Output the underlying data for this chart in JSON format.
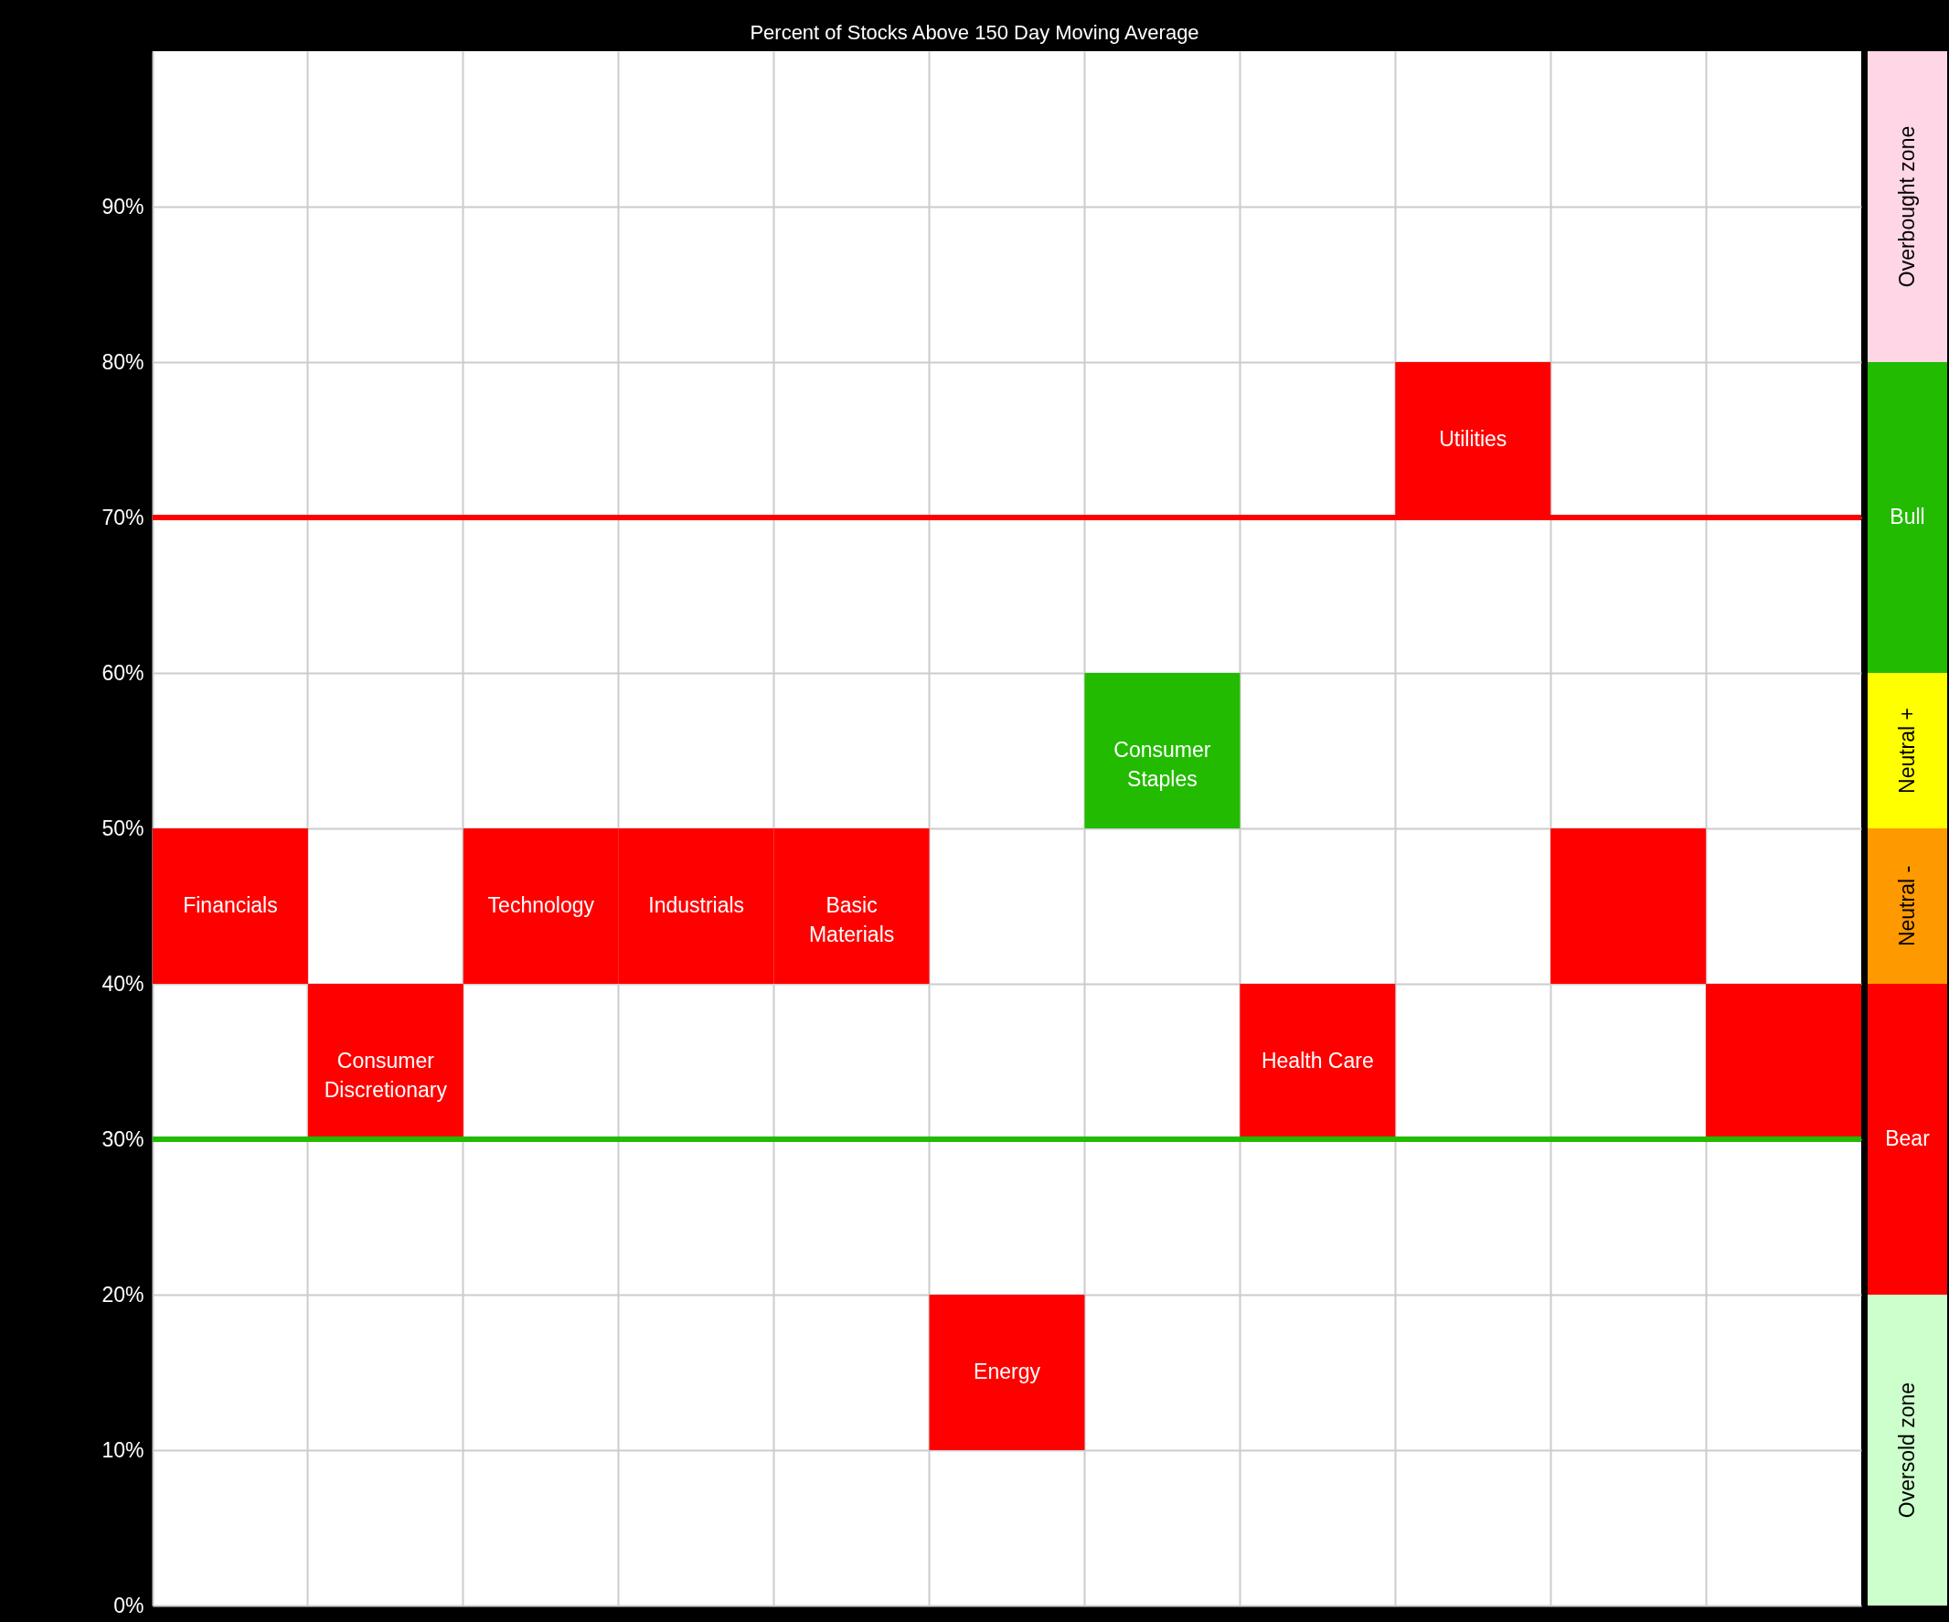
{
  "chart_data": [
    {
      "type": "bar",
      "title": "Percent of Stocks Above 150 Day Moving Average",
      "categories": [
        "Financials",
        "Consumer Discretionary",
        "Technology",
        "Industrials",
        "Basic Materials",
        "Energy",
        "Consumer Staples",
        "Health Care",
        "Utilities",
        null,
        null
      ],
      "base": [
        40,
        30,
        40,
        40,
        40,
        10,
        50,
        30,
        70,
        40,
        30
      ],
      "values": [
        10,
        10,
        10,
        10,
        10,
        10,
        10,
        10,
        10,
        10,
        10
      ],
      "colors": [
        "#ff0000",
        "#ff0000",
        "#ff0000",
        "#ff0000",
        "#ff0000",
        "#ff0000",
        "#22bb00",
        "#ff0000",
        "#ff0000",
        "#ff0000",
        "#ff0000"
      ],
      "ylim": [
        0,
        100
      ],
      "yticks": [
        {
          "value": 0,
          "label": "0%"
        },
        {
          "value": 10,
          "label": "10%"
        },
        {
          "value": 20,
          "label": "20%"
        },
        {
          "value": 30,
          "label": "30%"
        },
        {
          "value": 40,
          "label": "40%"
        },
        {
          "value": 50,
          "label": "50%"
        },
        {
          "value": 60,
          "label": "60%"
        },
        {
          "value": 70,
          "label": "70%"
        },
        {
          "value": 80,
          "label": "80%"
        },
        {
          "value": 90,
          "label": "90%"
        }
      ],
      "grid": true,
      "tick_labels": "y",
      "ref_lines": [
        {
          "axis": "y",
          "value": 70,
          "color": "#ff0000"
        },
        {
          "axis": "y",
          "value": 30,
          "color": "#22bb00"
        }
      ]
    },
    {
      "type": "bar",
      "stacked": true,
      "categories": [
        null
      ],
      "series": [
        {
          "name": "Oversold zone",
          "color": "#ccffcc",
          "values": [
            20
          ]
        },
        {
          "name": "Bear",
          "color": "#ff0000",
          "values": [
            20
          ]
        },
        {
          "name": "Neutral -",
          "color": "#ff9900",
          "values": [
            10
          ]
        },
        {
          "name": "Neutral +",
          "color": "#ffff00",
          "values": [
            10
          ]
        },
        {
          "name": "Bull",
          "color": "#22bb00",
          "values": [
            20
          ]
        },
        {
          "name": "Overbought zone",
          "color": "#ffd6e6",
          "values": [
            20
          ]
        }
      ],
      "ylim": [
        0,
        100
      ],
      "tick_labels": false
    }
  ]
}
